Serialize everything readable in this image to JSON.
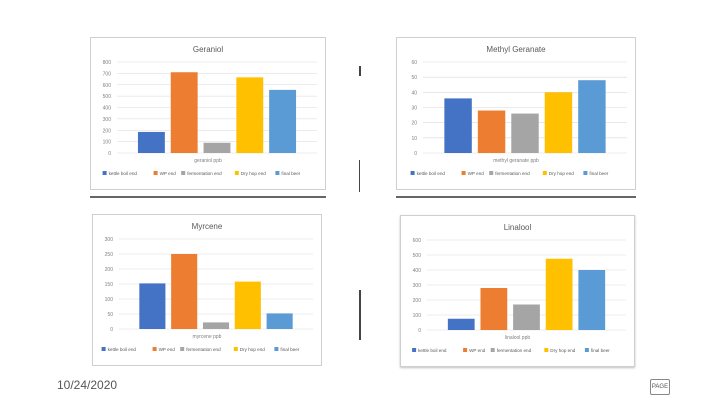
{
  "footer": {
    "date": "10/24/2020",
    "page_label": "PAGE"
  },
  "chart_data": [
    {
      "type": "bar",
      "title": "Geraniol",
      "xlabel": "geraniol ppb",
      "ylim": [
        0,
        800
      ],
      "yticks": [
        0,
        100,
        200,
        300,
        400,
        500,
        600,
        700,
        800
      ],
      "series": [
        {
          "name": "kettle boil end",
          "value": 185,
          "color": "#4472c4"
        },
        {
          "name": "WP end",
          "value": 710,
          "color": "#ed7d31"
        },
        {
          "name": "fermentation end",
          "value": 90,
          "color": "#a5a5a5"
        },
        {
          "name": "Dry hop end",
          "value": 665,
          "color": "#ffc000"
        },
        {
          "name": "final beer",
          "value": 555,
          "color": "#5b9bd5"
        }
      ]
    },
    {
      "type": "bar",
      "title": "Methyl Geranate",
      "xlabel": "methyl geranate ppb",
      "ylim": [
        0,
        60
      ],
      "yticks": [
        0,
        10,
        20,
        30,
        40,
        50,
        60
      ],
      "series": [
        {
          "name": "kettle boil end",
          "value": 36,
          "color": "#4472c4"
        },
        {
          "name": "WP end",
          "value": 28,
          "color": "#ed7d31"
        },
        {
          "name": "fermentation end",
          "value": 26,
          "color": "#a5a5a5"
        },
        {
          "name": "Dry hop end",
          "value": 40,
          "color": "#ffc000"
        },
        {
          "name": "final beer",
          "value": 48,
          "color": "#5b9bd5"
        }
      ]
    },
    {
      "type": "bar",
      "title": "Myrcene",
      "xlabel": "myrcene ppb",
      "ylim": [
        0,
        300
      ],
      "yticks": [
        0,
        50,
        100,
        150,
        200,
        250,
        300
      ],
      "series": [
        {
          "name": "kettle boil end",
          "value": 152,
          "color": "#4472c4"
        },
        {
          "name": "WP end",
          "value": 250,
          "color": "#ed7d31"
        },
        {
          "name": "fermentation end",
          "value": 22,
          "color": "#a5a5a5"
        },
        {
          "name": "Dry hop end",
          "value": 158,
          "color": "#ffc000"
        },
        {
          "name": "final beer",
          "value": 52,
          "color": "#5b9bd5"
        }
      ]
    },
    {
      "type": "bar",
      "title": "Linalool",
      "xlabel": "linalool ppb",
      "ylim": [
        0,
        600
      ],
      "yticks": [
        0,
        100,
        200,
        300,
        400,
        500,
        600
      ],
      "series": [
        {
          "name": "kettle boil end",
          "value": 75,
          "color": "#4472c4"
        },
        {
          "name": "WP end",
          "value": 280,
          "color": "#ed7d31"
        },
        {
          "name": "fermentation end",
          "value": 170,
          "color": "#a5a5a5"
        },
        {
          "name": "Dry hop end",
          "value": 475,
          "color": "#ffc000"
        },
        {
          "name": "final beer",
          "value": 400,
          "color": "#5b9bd5"
        }
      ]
    }
  ]
}
